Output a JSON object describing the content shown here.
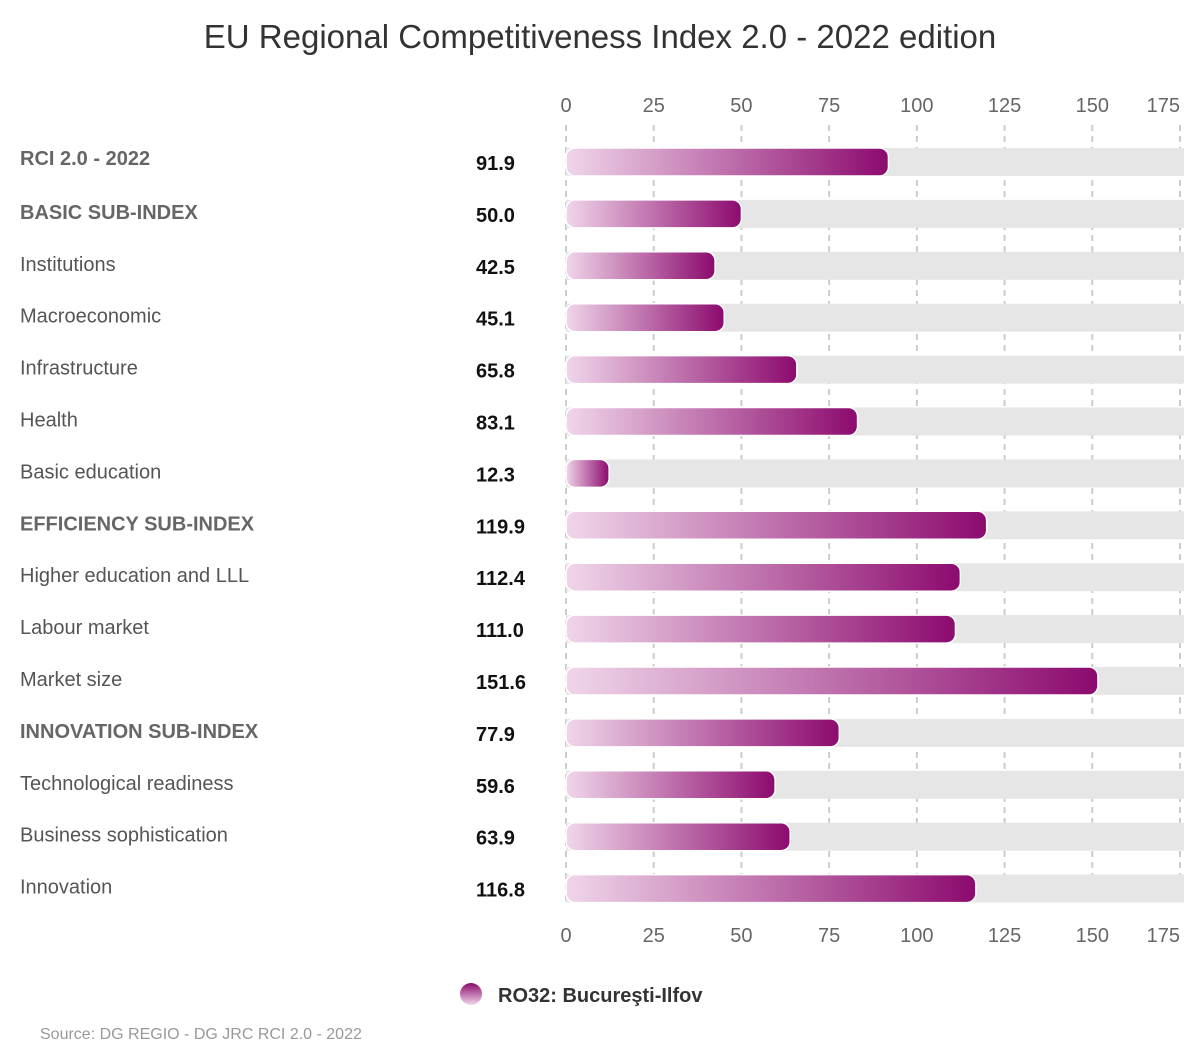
{
  "chart_data": {
    "type": "bar",
    "orientation": "horizontal",
    "title": "EU Regional Competitiveness Index 2.0 - 2022 edition",
    "categories": [
      "RCI 2.0 - 2022",
      "BASIC SUB-INDEX",
      "Institutions",
      "Macroeconomic",
      "Infrastructure",
      "Health",
      "Basic education",
      "EFFICIENCY SUB-INDEX",
      "Higher education and LLL",
      "Labour market",
      "Market size",
      "INNOVATION SUB-INDEX",
      "Technological readiness",
      "Business sophistication",
      "Innovation"
    ],
    "emphasized_categories": [
      "RCI 2.0 - 2022",
      "BASIC SUB-INDEX",
      "EFFICIENCY SUB-INDEX",
      "INNOVATION SUB-INDEX"
    ],
    "series": [
      {
        "name": "RO32: Bucureşti-Ilfov",
        "values": [
          91.9,
          50.0,
          42.5,
          45.1,
          65.8,
          83.1,
          12.3,
          119.9,
          112.4,
          111.0,
          151.6,
          77.9,
          59.6,
          63.9,
          116.8
        ],
        "value_labels": [
          "91.9",
          "50.0",
          "42.5",
          "45.1",
          "65.8",
          "83.1",
          "12.3",
          "119.9",
          "112.4",
          "111.0",
          "151.6",
          "77.9",
          "59.6",
          "63.9",
          "116.8"
        ]
      }
    ],
    "x_ticks": [
      "0",
      "25",
      "50",
      "75",
      "100",
      "125",
      "150",
      "175"
    ],
    "xlim": [
      0,
      175
    ],
    "axis_position": "top-and-bottom",
    "grid": true,
    "legend_position": "bottom-center",
    "colors": {
      "bar_gradient_start": "#f0d6ea",
      "bar_gradient_end": "#8c0a6e",
      "track": "#e6e6e6",
      "gridline": "#cccccc"
    }
  },
  "source": "Source: DG REGIO - DG JRC RCI 2.0 - 2022"
}
